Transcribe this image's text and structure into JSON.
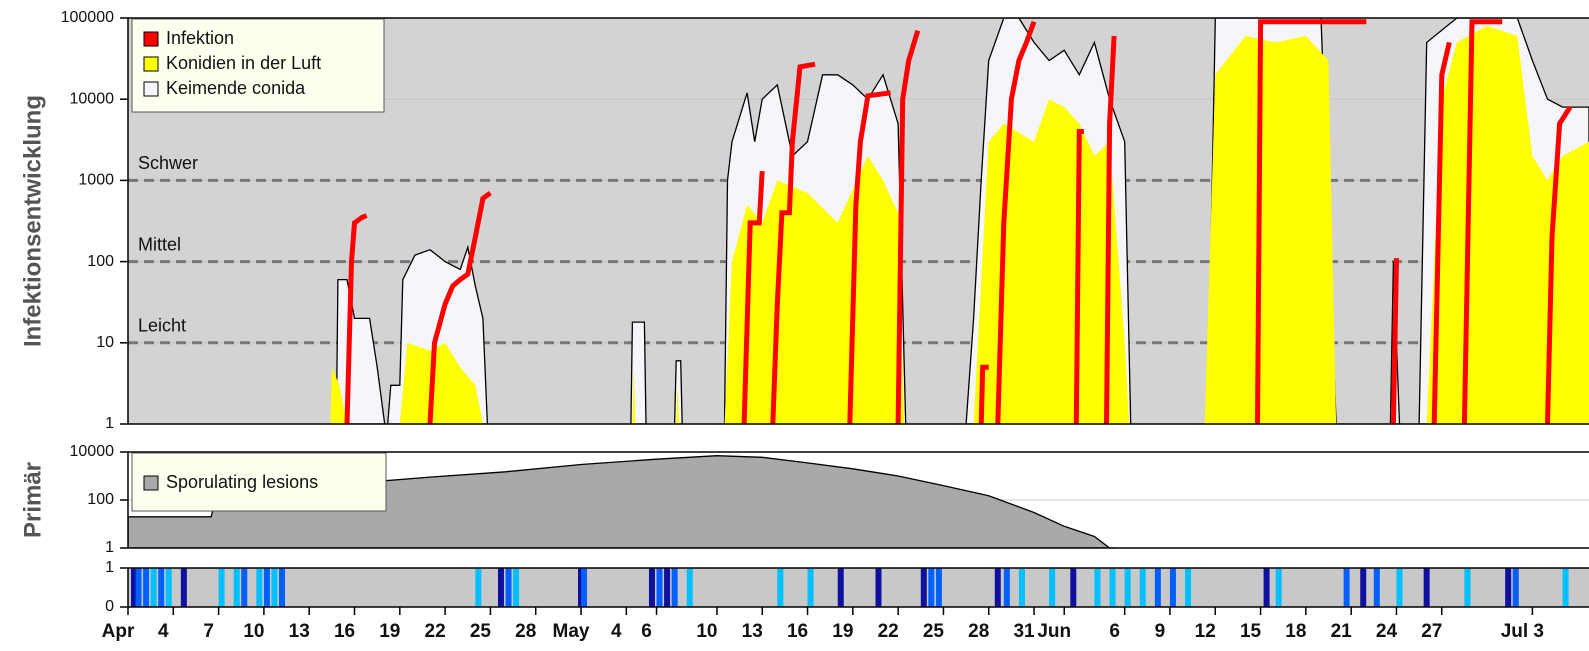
{
  "chart_data": [
    {
      "type": "area",
      "ylabel": "Infektionsentwicklung",
      "log_scale": true,
      "ylim": [
        1,
        100000
      ],
      "yticks": [
        1,
        10,
        100,
        1000,
        10000,
        100000
      ],
      "xlim": [
        0,
        96.75
      ],
      "background": "#d3d3d3",
      "legend": "upper left",
      "annotations": [
        {
          "text": "Schwer",
          "y": 1000
        },
        {
          "text": "Mittel",
          "y": 100
        },
        {
          "text": "Leicht",
          "y": 10
        }
      ],
      "series": [
        {
          "name": "Keimende conida",
          "color": "#f5f6fa",
          "style": "area",
          "x": [
            13.8,
            13.9,
            14.5,
            15,
            16,
            16.5,
            17,
            null,
            17.2,
            17.4,
            18,
            18.2,
            19,
            20,
            21,
            22,
            22.5,
            23,
            23.5,
            23.8,
            null,
            33.3,
            33.4,
            34.2,
            34.3,
            null,
            36.2,
            36.3,
            36.6,
            36.7,
            null,
            39.5,
            39.7,
            40,
            41,
            41.5,
            42,
            43,
            44,
            45,
            46,
            47,
            48,
            49,
            50,
            51,
            51.5,
            null,
            55.5,
            56,
            56.5,
            57,
            58,
            59,
            60,
            61,
            62,
            63,
            64,
            65,
            66,
            66.4,
            null,
            71.5,
            72,
            79,
            80,
            null,
            83.6,
            83.8,
            84.2,
            null,
            85.5,
            86,
            88,
            92,
            93,
            94,
            95,
            96.75
          ],
          "values": [
            1,
            60,
            60,
            20,
            20,
            5,
            1,
            null,
            1,
            3,
            3,
            60,
            120,
            140,
            100,
            80,
            150,
            50,
            20,
            1,
            null,
            1,
            18,
            18,
            1,
            null,
            1,
            6,
            6,
            1,
            null,
            1,
            1000,
            3000,
            12000,
            3000,
            10000,
            15000,
            2000,
            3000,
            20000,
            20000,
            15000,
            10000,
            20000,
            5000,
            1,
            null,
            1,
            20,
            1000,
            30000,
            100000,
            100000,
            50000,
            30000,
            40000,
            20000,
            50000,
            10000,
            3000,
            1,
            null,
            1,
            100000,
            100000,
            1,
            null,
            1,
            100,
            1,
            null,
            1,
            50000,
            100000,
            100000,
            30000,
            10000,
            8000,
            8000
          ]
        },
        {
          "name": "Konidien in der Luft",
          "color": "#ffff00",
          "style": "area",
          "x": [
            13.4,
            13.5,
            14,
            14.5,
            null,
            18,
            18.5,
            20,
            21,
            22,
            23,
            23.5,
            null,
            33.4,
            33.5,
            33.6,
            null,
            36.3,
            36.4,
            36.5,
            null,
            39.5,
            40,
            41,
            42,
            43,
            45,
            47,
            49,
            50,
            51,
            51.4,
            null,
            56,
            57,
            58,
            60,
            61,
            62,
            63,
            64,
            65,
            66,
            66.3,
            null,
            71.3,
            72,
            74,
            76,
            78,
            79.5,
            80,
            null,
            86,
            87,
            88,
            90,
            92,
            93,
            94,
            95,
            96.75
          ],
          "values": [
            1,
            5,
            3,
            1,
            null,
            1,
            10,
            8,
            10,
            5,
            3,
            1,
            null,
            1,
            5,
            1,
            null,
            1,
            3,
            1,
            null,
            1,
            100,
            500,
            300,
            1000,
            700,
            300,
            2000,
            1000,
            400,
            1,
            null,
            1,
            3000,
            5000,
            3000,
            10000,
            8000,
            5000,
            2000,
            3000,
            10,
            1,
            null,
            1,
            20000,
            60000,
            50000,
            60000,
            30000,
            1,
            null,
            1,
            10000,
            50000,
            80000,
            60000,
            2000,
            1000,
            2000,
            3000
          ]
        },
        {
          "name": "Infektion",
          "color": "#ff0000",
          "style": "line",
          "x": [
            14.5,
            14.8,
            15,
            15.5,
            15.8,
            null,
            20,
            20.3,
            21,
            21.5,
            22,
            22.5,
            23,
            23.5,
            24,
            null,
            40.8,
            41.2,
            41.8,
            42,
            null,
            42.7,
            43,
            43.3,
            43.8,
            44,
            44.5,
            45.5,
            null,
            47.8,
            48.2,
            48.5,
            49,
            50.5,
            null,
            51,
            51.3,
            51.7,
            52.3,
            null,
            56.5,
            56.6,
            57,
            null,
            57.6,
            58,
            58.5,
            59,
            59.5,
            60,
            null,
            62.8,
            63,
            63.3,
            null,
            64.8,
            65,
            65.3,
            null,
            74.8,
            75,
            82,
            null,
            83.8,
            84,
            null,
            86.5,
            87,
            87.5,
            null,
            88.5,
            89,
            91,
            null,
            94,
            94.3,
            94.8,
            95.5
          ],
          "values": [
            1,
            100,
            300,
            350,
            370,
            null,
            1,
            10,
            30,
            50,
            60,
            70,
            200,
            600,
            700,
            null,
            1,
            300,
            300,
            1300,
            null,
            1,
            30,
            400,
            400,
            3000,
            25000,
            27000,
            null,
            1,
            500,
            3000,
            11000,
            12000,
            null,
            1,
            10000,
            30000,
            70000,
            null,
            1,
            5,
            5,
            null,
            1,
            300,
            10000,
            30000,
            50000,
            90000,
            null,
            1,
            4000,
            4000,
            null,
            1,
            5000,
            60000,
            null,
            1,
            90000,
            90000,
            null,
            1,
            110,
            null,
            1,
            20000,
            50000,
            null,
            1,
            90000,
            90000,
            null,
            1,
            200,
            5000,
            8000
          ]
        }
      ]
    },
    {
      "type": "area",
      "ylabel": "Primär",
      "log_scale": true,
      "ylim": [
        1,
        10000
      ],
      "yticks": [
        1,
        100,
        10000
      ],
      "xlim": [
        0,
        96.75
      ],
      "background": "#ffffff",
      "legend": "upper left",
      "series": [
        {
          "name": "Sporulating lesions",
          "color": "#a9a9a9",
          "style": "area",
          "x": [
            0,
            5.5,
            6,
            10,
            15,
            20,
            25,
            30,
            35,
            39,
            42,
            45,
            48,
            51,
            54,
            57,
            60,
            62,
            64,
            65,
            65.5
          ],
          "values": [
            20,
            20,
            300,
            300,
            500,
            900,
            1500,
            3000,
            5000,
            7000,
            6000,
            3500,
            2000,
            1000,
            400,
            150,
            30,
            8,
            3,
            1,
            1
          ]
        }
      ]
    },
    {
      "type": "strip",
      "ylim": [
        0,
        1
      ],
      "yticks": [
        0,
        1
      ],
      "xlim": [
        0,
        96.75
      ],
      "background": "#c8c8c8",
      "xticks": [
        {
          "value": 0,
          "label": "Apr"
        },
        {
          "value": 3,
          "label": "4"
        },
        {
          "value": 6,
          "label": "7"
        },
        {
          "value": 9,
          "label": "10"
        },
        {
          "value": 12,
          "label": "13"
        },
        {
          "value": 15,
          "label": "16"
        },
        {
          "value": 18,
          "label": "19"
        },
        {
          "value": 21,
          "label": "22"
        },
        {
          "value": 24,
          "label": "25"
        },
        {
          "value": 27,
          "label": "28"
        },
        {
          "value": 30,
          "label": "May"
        },
        {
          "value": 33,
          "label": "4"
        },
        {
          "value": 35,
          "label": "6"
        },
        {
          "value": 39,
          "label": "10"
        },
        {
          "value": 42,
          "label": "13"
        },
        {
          "value": 45,
          "label": "16"
        },
        {
          "value": 48,
          "label": "19"
        },
        {
          "value": 51,
          "label": "22"
        },
        {
          "value": 54,
          "label": "25"
        },
        {
          "value": 57,
          "label": "28"
        },
        {
          "value": 60,
          "label": "31"
        },
        {
          "value": 62,
          "label": "Jun"
        },
        {
          "value": 66,
          "label": "6"
        },
        {
          "value": 69,
          "label": "9"
        },
        {
          "value": 72,
          "label": "12"
        },
        {
          "value": 75,
          "label": "15"
        },
        {
          "value": 78,
          "label": "18"
        },
        {
          "value": 81,
          "label": "21"
        },
        {
          "value": 84,
          "label": "24"
        },
        {
          "value": 87,
          "label": "27"
        },
        {
          "value": 93,
          "label": "Jul 3"
        }
      ],
      "series": [
        {
          "color": "#1010a0",
          "x": [
            0.2,
            3.5,
            24.5,
            29.8,
            34.5,
            35.5,
            47,
            49.5,
            52.5,
            57.4,
            62.4,
            75.2,
            81.6,
            85.8,
            91.2
          ],
          "values": [
            1,
            1,
            1,
            1,
            1,
            1,
            1,
            1,
            1,
            1,
            1,
            1,
            1,
            1,
            1
          ]
        },
        {
          "color": "#0060ff",
          "x": [
            0.5,
            1,
            2,
            7.5,
            9,
            10,
            25,
            30,
            35,
            36,
            53,
            53.5,
            58,
            68,
            69,
            80.5,
            82.5,
            91.7
          ],
          "values": [
            1,
            1,
            1,
            1,
            1,
            1,
            1,
            1,
            1,
            1,
            1,
            1,
            1,
            1,
            1,
            1,
            1,
            1
          ]
        },
        {
          "color": "#00c0ff",
          "x": [
            1.5,
            2.5,
            6,
            7,
            8.5,
            9.5,
            23,
            25.5,
            37,
            43,
            45,
            59,
            61,
            64,
            65,
            66,
            67,
            70,
            76,
            84,
            88.5,
            95
          ],
          "values": [
            1,
            1,
            1,
            1,
            1,
            1,
            1,
            1,
            1,
            1,
            1,
            1,
            1,
            1,
            1,
            1,
            1,
            1,
            1,
            1,
            1,
            1
          ]
        }
      ]
    }
  ]
}
